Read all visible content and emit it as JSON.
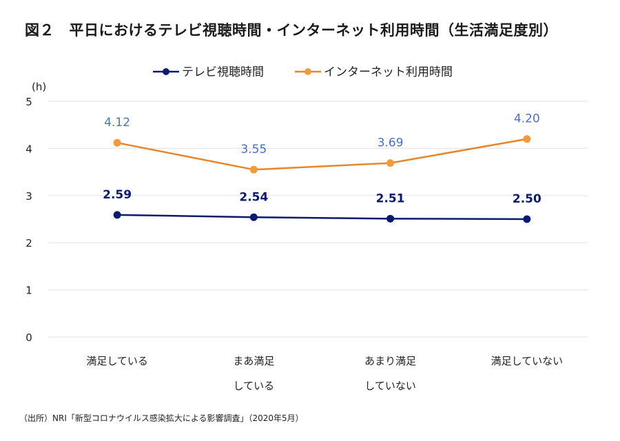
{
  "title": "図２　平日におけるテレビ視聴時間・インターネット利用時間（生活満足度別）",
  "source": "（出所）NRI「新型コロナウイルス感染拡大による影響調査」（2020年5月）",
  "colors": {
    "tv": "#0a1a6e",
    "net": "#e9842a",
    "net_marker": "#f29a3c",
    "net_label": "#4a72b8",
    "grid": "#e6e6e6"
  },
  "chart_data": {
    "type": "line",
    "title": "図２　平日におけるテレビ視聴時間・インターネット利用時間（生活満足度別）",
    "xlabel": "",
    "ylabel": "(h)",
    "ylim": [
      0,
      5
    ],
    "yticks": [
      "0",
      "1",
      "2",
      "3",
      "4",
      "5"
    ],
    "grid": true,
    "legend_position": "top-center",
    "categories": [
      [
        "満足している"
      ],
      [
        "まあ満足",
        "している"
      ],
      [
        "あまり満足",
        "していない"
      ],
      [
        "満足していない"
      ]
    ],
    "series": [
      {
        "name": "テレビ視聴時間",
        "key": "tv",
        "values": [
          2.59,
          2.54,
          2.51,
          2.5
        ],
        "labels": [
          "2.59",
          "2.54",
          "2.51",
          "2.50"
        ]
      },
      {
        "name": "インターネット利用時間",
        "key": "net",
        "values": [
          4.12,
          3.55,
          3.69,
          4.2
        ],
        "labels": [
          "4.12",
          "3.55",
          "3.69",
          "4.20"
        ]
      }
    ]
  }
}
